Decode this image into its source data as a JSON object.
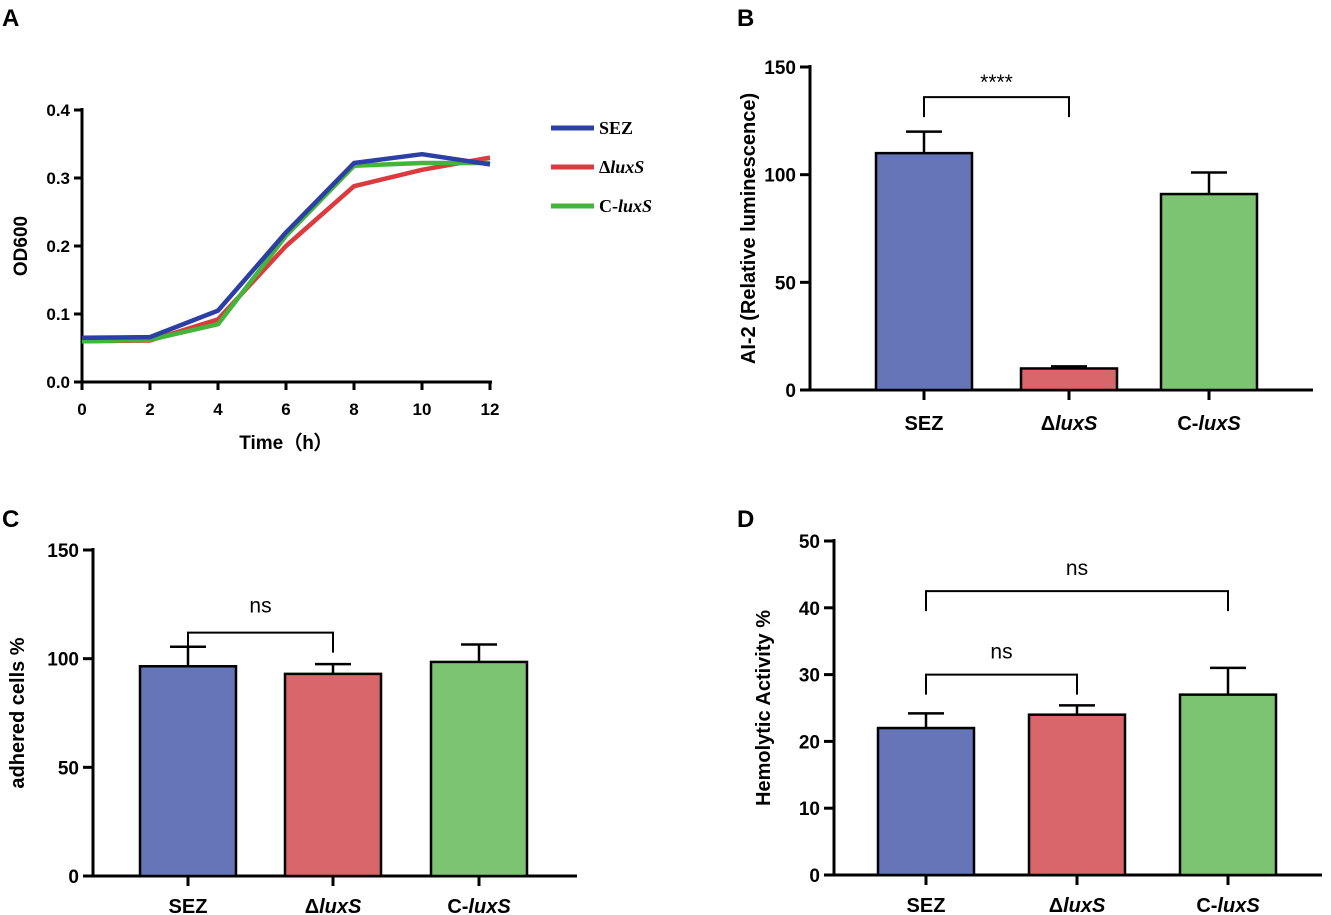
{
  "panels": {
    "A": {
      "letter": "A"
    },
    "B": {
      "letter": "B"
    },
    "C": {
      "letter": "C"
    },
    "D": {
      "letter": "D"
    }
  },
  "colors": {
    "SEZ": "#6674b8",
    "dluxS": "#d9666a",
    "CluxS": "#7dc472",
    "line_SEZ": "#2c3fa5",
    "line_dluxS": "#db3a3e",
    "line_CluxS": "#43b53a"
  },
  "chart_data": [
    {
      "panel": "A",
      "type": "line",
      "xlabel": "Time（h）",
      "ylabel": "OD600",
      "xlim": [
        0,
        12
      ],
      "ylim": [
        0,
        0.4
      ],
      "xticks": [
        0,
        2,
        4,
        6,
        8,
        10,
        12
      ],
      "xtick_labels": [
        "0",
        "2",
        "4",
        "6",
        "8",
        "10",
        "12"
      ],
      "yticks": [
        0,
        0.1,
        0.2,
        0.3,
        0.4
      ],
      "ytick_labels": [
        "0.0",
        "0.1",
        "0.2",
        "0.3",
        "0.4"
      ],
      "x": [
        0,
        2,
        4,
        6,
        8,
        10,
        12
      ],
      "series": [
        {
          "name": "SEZ",
          "italic": "",
          "prefix": "SEZ",
          "values": [
            0.065,
            0.066,
            0.105,
            0.22,
            0.322,
            0.335,
            0.32
          ]
        },
        {
          "name": "ΔluxS",
          "prefix": "Δ",
          "italic": "luxS",
          "values": [
            0.06,
            0.061,
            0.092,
            0.2,
            0.288,
            0.312,
            0.33
          ]
        },
        {
          "name": "C-luxS",
          "prefix": "C-",
          "italic": "luxS",
          "values": [
            0.06,
            0.062,
            0.085,
            0.215,
            0.318,
            0.322,
            0.322
          ]
        }
      ]
    },
    {
      "panel": "B",
      "type": "bar",
      "ylabel": "AI-2 (Relative luminescence)",
      "ylim": [
        0,
        150
      ],
      "yticks": [
        0,
        50,
        100,
        150
      ],
      "ytick_labels": [
        "0",
        "50",
        "100",
        "150"
      ],
      "categories": [
        "SEZ",
        "ΔluxS",
        "C-luxS"
      ],
      "category_labels": [
        {
          "prefix": "SEZ",
          "italic": ""
        },
        {
          "prefix": "Δ",
          "italic": "luxS"
        },
        {
          "prefix": "C-",
          "italic": "luxS"
        }
      ],
      "values": [
        110,
        10,
        91
      ],
      "errors": [
        10,
        1,
        10
      ],
      "significance": [
        {
          "from": 0,
          "to": 1,
          "label": "****",
          "y": 136
        }
      ]
    },
    {
      "panel": "C",
      "type": "bar",
      "ylabel": "adhered cells %",
      "ylim": [
        0,
        150
      ],
      "yticks": [
        0,
        50,
        100,
        150
      ],
      "ytick_labels": [
        "0",
        "50",
        "100",
        "150"
      ],
      "categories": [
        "SEZ",
        "ΔluxS",
        "C-luxS"
      ],
      "category_labels": [
        {
          "prefix": "SEZ",
          "italic": ""
        },
        {
          "prefix": "Δ",
          "italic": "luxS"
        },
        {
          "prefix": "C-",
          "italic": "luxS"
        }
      ],
      "values": [
        96.5,
        93,
        98.5
      ],
      "errors": [
        9,
        4.5,
        8
      ],
      "significance": [
        {
          "from": 0,
          "to": 1,
          "label": "ns",
          "y": 112
        }
      ]
    },
    {
      "panel": "D",
      "type": "bar",
      "ylabel": "Hemolytic Activity %",
      "ylim": [
        0,
        50
      ],
      "yticks": [
        0,
        10,
        20,
        30,
        40,
        50
      ],
      "ytick_labels": [
        "0",
        "10",
        "20",
        "30",
        "40",
        "50"
      ],
      "categories": [
        "SEZ",
        "ΔluxS",
        "C-luxS"
      ],
      "category_labels": [
        {
          "prefix": "SEZ",
          "italic": ""
        },
        {
          "prefix": "Δ",
          "italic": "luxS"
        },
        {
          "prefix": "C-",
          "italic": "luxS"
        }
      ],
      "values": [
        22,
        24,
        27
      ],
      "errors": [
        2.2,
        1.4,
        4
      ],
      "significance": [
        {
          "from": 0,
          "to": 1,
          "label": "ns",
          "y": 30
        },
        {
          "from": 0,
          "to": 2,
          "label": "ns",
          "y": 42.5
        }
      ]
    }
  ]
}
